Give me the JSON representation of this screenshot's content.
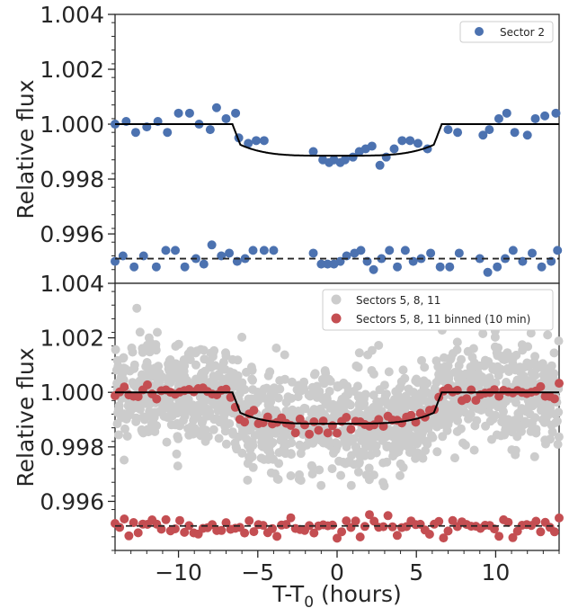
{
  "chart_data": [
    {
      "type": "scatter",
      "panel": "top",
      "xlabel": "",
      "ylabel": "Relative flux",
      "xlim": [
        -14,
        14
      ],
      "ylim": [
        0.9942,
        1.004
      ],
      "yticks": [
        "0.996",
        "0.998",
        "1.000",
        "1.002",
        "1.004"
      ],
      "ytick_values": [
        0.996,
        0.998,
        1.0,
        1.002,
        1.004
      ],
      "legend": {
        "placement": "top-right",
        "entries": [
          "Sector 2"
        ]
      },
      "colors": {
        "data": "#4c72b0",
        "model": "#000000"
      },
      "series": [
        {
          "name": "Sector 2",
          "x": [
            -14.0,
            -13.3,
            -12.7,
            -12.0,
            -11.3,
            -10.7,
            -10.0,
            -9.3,
            -8.7,
            -8.0,
            -7.6,
            -7.0,
            -6.4,
            -6.2,
            -5.6,
            -5.1,
            -4.6,
            -1.5,
            -0.9,
            -0.5,
            -0.2,
            0.2,
            0.5,
            1.0,
            1.4,
            1.8,
            2.2,
            2.7,
            3.1,
            3.6,
            4.1,
            4.6,
            5.1,
            5.7,
            7.0,
            7.6,
            9.2,
            9.6,
            10.2,
            10.7,
            11.2,
            12.0,
            12.5,
            13.1,
            13.8
          ],
          "y": [
            1.0,
            1.0001,
            0.9997,
            0.9999,
            1.0001,
            0.9997,
            1.0004,
            1.0004,
            1.0,
            0.9998,
            1.0006,
            1.0002,
            1.0004,
            0.9995,
            0.9993,
            0.9994,
            0.9994,
            0.999,
            0.9987,
            0.9986,
            0.9987,
            0.9986,
            0.9987,
            0.9988,
            0.999,
            0.9991,
            0.9992,
            0.9985,
            0.9988,
            0.9991,
            0.9994,
            0.9994,
            0.9993,
            0.9991,
            0.9998,
            0.9997,
            0.9996,
            0.9998,
            1.0002,
            1.0004,
            0.9997,
            0.9996,
            1.0002,
            1.0003,
            1.0004
          ]
        },
        {
          "name": "",
          "x": [
            -14.0,
            -13.5,
            -12.8,
            -12.2,
            -11.4,
            -10.8,
            -10.2,
            -9.6,
            -8.9,
            -8.4,
            -7.9,
            -7.3,
            -6.8,
            -6.3,
            -5.8,
            -5.3,
            -4.6,
            -4.0,
            -1.5,
            -1.0,
            -0.6,
            -0.2,
            0.2,
            0.6,
            1.1,
            1.5,
            1.9,
            2.3,
            2.8,
            3.3,
            3.8,
            4.3,
            4.8,
            5.3,
            5.9,
            6.5,
            7.1,
            7.7,
            9.0,
            9.5,
            10.1,
            10.6,
            11.1,
            11.7,
            12.3,
            12.9,
            13.5,
            13.9
          ],
          "y": [
            0.995,
            0.9952,
            0.9948,
            0.9952,
            0.9948,
            0.9954,
            0.9954,
            0.9948,
            0.9951,
            0.9949,
            0.9956,
            0.9952,
            0.9953,
            0.995,
            0.9951,
            0.9954,
            0.9954,
            0.9954,
            0.9953,
            0.9949,
            0.9949,
            0.9949,
            0.995,
            0.9952,
            0.9953,
            0.9954,
            0.995,
            0.9947,
            0.9951,
            0.9954,
            0.9948,
            0.9954,
            0.995,
            0.9951,
            0.9953,
            0.9948,
            0.9948,
            0.9953,
            0.9951,
            0.9946,
            0.9948,
            0.9951,
            0.9954,
            0.995,
            0.9953,
            0.9948,
            0.995,
            0.9954
          ]
        }
      ]
    },
    {
      "type": "scatter",
      "panel": "bottom",
      "xlabel": "T-T",
      "xlabel_sub": "0",
      "xlabel_suffix": " (hours)",
      "ylabel": "Relative flux",
      "xlim": [
        -14,
        14
      ],
      "ylim": [
        0.9942,
        1.004
      ],
      "xticks": [
        "−10",
        "−5",
        "0",
        "5",
        "10"
      ],
      "xtick_values": [
        -10,
        -5,
        0,
        5,
        10
      ],
      "yticks": [
        "0.996",
        "0.998",
        "1.000",
        "1.002",
        "1.004"
      ],
      "ytick_values": [
        0.996,
        0.998,
        1.0,
        1.002,
        1.004
      ],
      "legend": {
        "placement": "top-right",
        "entries": [
          "Sectors 5, 8, 11",
          "Sectors 5, 8, 11 binned (10 min)"
        ]
      },
      "colors": {
        "unbinned": "#cccccc",
        "binned": "#c44e52",
        "model": "#000000"
      },
      "unbinned_scatter_sigma": 0.0009,
      "binned_scatter_sigma": 0.00017,
      "binned_bin_minutes": 10
    }
  ],
  "model": {
    "transit_ingress_start": -6.6,
    "transit_ingress_end": -6.1,
    "transit_egress_start": 6.1,
    "transit_egress_end": 6.6,
    "transit_edge_flux": 0.99925,
    "transit_center_flux": 0.99885,
    "residual_offset": 0.9951
  }
}
